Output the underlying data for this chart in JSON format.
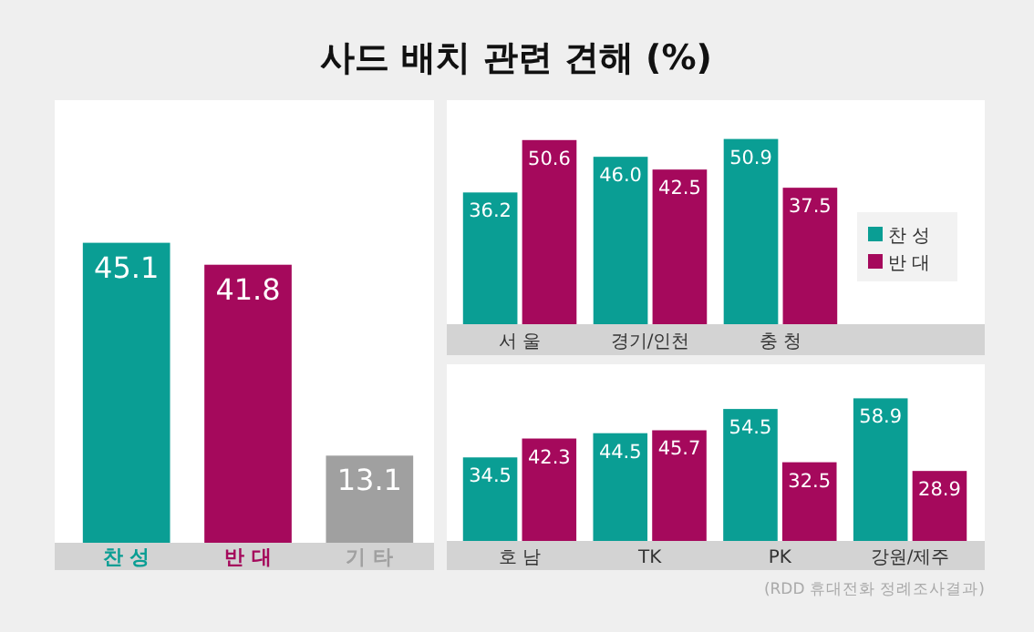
{
  "chart_data": [
    {
      "type": "bar",
      "title": "사드 배치 관련 견해 (%)",
      "categories": [
        "찬 성",
        "반 대",
        "기 타"
      ],
      "values": [
        45.1,
        41.8,
        13.1
      ],
      "colors": [
        "#0a9e94",
        "#a5095c",
        "#a0a0a0"
      ],
      "data_labels": true
    },
    {
      "type": "bar",
      "categories": [
        "서 울",
        "경기/인천",
        "충 청"
      ],
      "series": [
        {
          "name": "찬 성",
          "color": "#0a9e94",
          "values": [
            36.2,
            46.0,
            50.9
          ],
          "value_labels": [
            "36.2",
            "46.0",
            "50.9"
          ]
        },
        {
          "name": "반 대",
          "color": "#a5095c",
          "values": [
            50.6,
            42.5,
            37.5
          ],
          "value_labels": [
            "50.6",
            "42.5",
            "37.5"
          ]
        }
      ],
      "legend": "right"
    },
    {
      "type": "bar",
      "categories": [
        "호 남",
        "TK",
        "PK",
        "강원/제주"
      ],
      "series": [
        {
          "color": "#0a9e94",
          "values": [
            34.5,
            44.5,
            54.5,
            58.9
          ],
          "value_labels": [
            "34.5",
            "44.5",
            "54.5",
            "58.9"
          ]
        },
        {
          "color": "#a5095c",
          "values": [
            42.3,
            45.7,
            32.5,
            28.9
          ],
          "value_labels": [
            "42.3",
            "45.7",
            "32.5",
            "28.9"
          ]
        }
      ],
      "annotations": [
        "(RDD 휴대전화 정례조사결과)"
      ]
    }
  ]
}
